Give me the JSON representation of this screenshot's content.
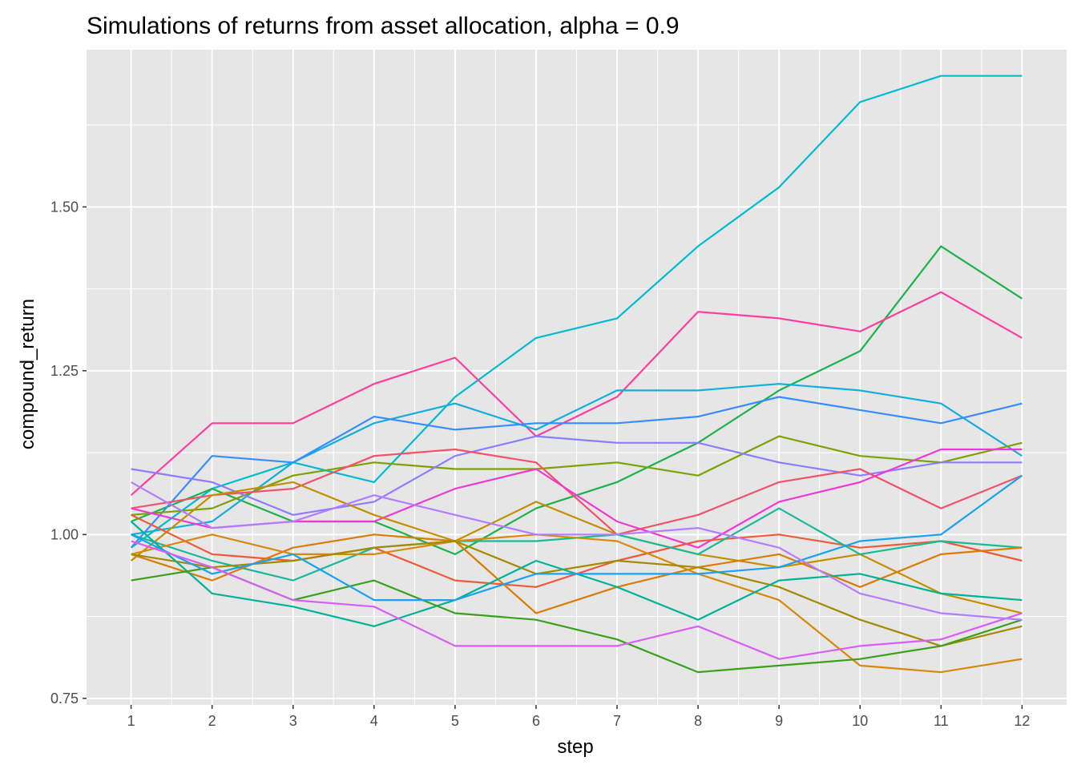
{
  "chart_data": {
    "type": "line",
    "title": "Simulations of returns from asset allocation, alpha = 0.9",
    "xlabel": "step",
    "ylabel": "compound_return",
    "x": [
      1,
      2,
      3,
      4,
      5,
      6,
      7,
      8,
      9,
      10,
      11,
      12
    ],
    "x_ticks": [
      "1",
      "2",
      "3",
      "4",
      "5",
      "6",
      "7",
      "8",
      "9",
      "10",
      "11",
      "12"
    ],
    "y_ticks": [
      "0.75",
      "1.00",
      "1.25",
      "1.50"
    ],
    "y_tick_values": [
      0.75,
      1.0,
      1.25,
      1.5
    ],
    "xlim": [
      0.45,
      12.55
    ],
    "ylim": [
      0.74,
      1.74
    ],
    "grid": true,
    "panel_background": "#e6e6e6",
    "grid_color": "#ffffff",
    "series": [
      {
        "color": "#00bcd0",
        "values": [
          0.98,
          1.07,
          1.11,
          1.08,
          1.21,
          1.3,
          1.33,
          1.44,
          1.53,
          1.66,
          1.7,
          1.7
        ]
      },
      {
        "color": "#1cb34c",
        "values": [
          1.02,
          1.07,
          1.02,
          1.02,
          0.97,
          1.04,
          1.08,
          1.14,
          1.22,
          1.28,
          1.44,
          1.36
        ]
      },
      {
        "color": "#fc3f9f",
        "values": [
          1.06,
          1.17,
          1.17,
          1.23,
          1.27,
          1.15,
          1.21,
          1.34,
          1.33,
          1.31,
          1.37,
          1.3
        ]
      },
      {
        "color": "#14addf",
        "values": [
          1.0,
          1.02,
          1.11,
          1.17,
          1.2,
          1.16,
          1.22,
          1.22,
          1.23,
          1.22,
          1.2,
          1.12
        ]
      },
      {
        "color": "#368efe",
        "values": [
          0.98,
          1.12,
          1.11,
          1.18,
          1.16,
          1.17,
          1.17,
          1.18,
          1.21,
          1.19,
          1.17,
          1.2
        ]
      },
      {
        "color": "#7ea203",
        "values": [
          1.03,
          1.04,
          1.09,
          1.11,
          1.1,
          1.1,
          1.11,
          1.09,
          1.15,
          1.12,
          1.11,
          1.14
        ]
      },
      {
        "color": "#8c7dfe",
        "values": [
          1.1,
          1.08,
          1.03,
          1.05,
          1.12,
          1.15,
          1.14,
          1.14,
          1.11,
          1.09,
          1.11,
          1.11
        ]
      },
      {
        "color": "#f2526a",
        "values": [
          1.04,
          1.06,
          1.07,
          1.12,
          1.13,
          1.11,
          1.0,
          1.03,
          1.08,
          1.1,
          1.04,
          1.09
        ]
      },
      {
        "color": "#ef38d4",
        "values": [
          1.04,
          1.01,
          1.02,
          1.02,
          1.07,
          1.1,
          1.02,
          0.98,
          1.05,
          1.08,
          1.13,
          1.13
        ]
      },
      {
        "color": "#c38f01",
        "values": [
          0.96,
          1.06,
          1.08,
          1.03,
          0.99,
          1.05,
          1.0,
          0.97,
          0.95,
          0.97,
          0.91,
          0.88
        ]
      },
      {
        "color": "#ee5b3a",
        "values": [
          1.03,
          0.97,
          0.96,
          0.98,
          0.93,
          0.92,
          0.96,
          0.99,
          1.0,
          0.98,
          0.99,
          0.96
        ]
      },
      {
        "color": "#1ab997",
        "values": [
          1.0,
          0.96,
          0.93,
          0.98,
          0.99,
          0.99,
          1.0,
          0.97,
          1.04,
          0.97,
          0.99,
          0.98
        ]
      },
      {
        "color": "#d97d04",
        "values": [
          0.97,
          0.93,
          0.98,
          1.0,
          0.99,
          0.88,
          0.92,
          0.95,
          0.97,
          0.92,
          0.97,
          0.98
        ]
      },
      {
        "color": "#d9890a",
        "values": [
          0.97,
          1.0,
          0.97,
          0.97,
          0.99,
          1.0,
          0.99,
          0.94,
          0.9,
          0.8,
          0.79,
          0.81
        ]
      },
      {
        "color": "#a58a00",
        "values": [
          0.97,
          0.95,
          0.96,
          0.98,
          0.99,
          0.94,
          0.96,
          0.95,
          0.92,
          0.87,
          0.83,
          0.86
        ]
      },
      {
        "color": "#00b396",
        "values": [
          1.02,
          0.91,
          0.89,
          0.86,
          0.9,
          0.96,
          0.92,
          0.87,
          0.93,
          0.94,
          0.91,
          0.9
        ]
      },
      {
        "color": "#39a21a",
        "values": [
          0.93,
          0.95,
          0.9,
          0.93,
          0.88,
          0.87,
          0.84,
          0.79,
          0.8,
          0.81,
          0.83,
          0.87
        ]
      },
      {
        "color": "#1aa2ef",
        "values": [
          1.0,
          0.94,
          0.97,
          0.9,
          0.9,
          0.94,
          0.94,
          0.94,
          0.95,
          0.99,
          1.0,
          1.09
        ]
      },
      {
        "color": "#d95ef7",
        "values": [
          0.99,
          0.95,
          0.9,
          0.89,
          0.83,
          0.83,
          0.83,
          0.86,
          0.81,
          0.83,
          0.84,
          0.88
        ]
      },
      {
        "color": "#b27dfe",
        "values": [
          1.08,
          1.01,
          1.02,
          1.06,
          1.03,
          1.0,
          1.0,
          1.01,
          0.98,
          0.91,
          0.88,
          0.87
        ]
      }
    ]
  }
}
